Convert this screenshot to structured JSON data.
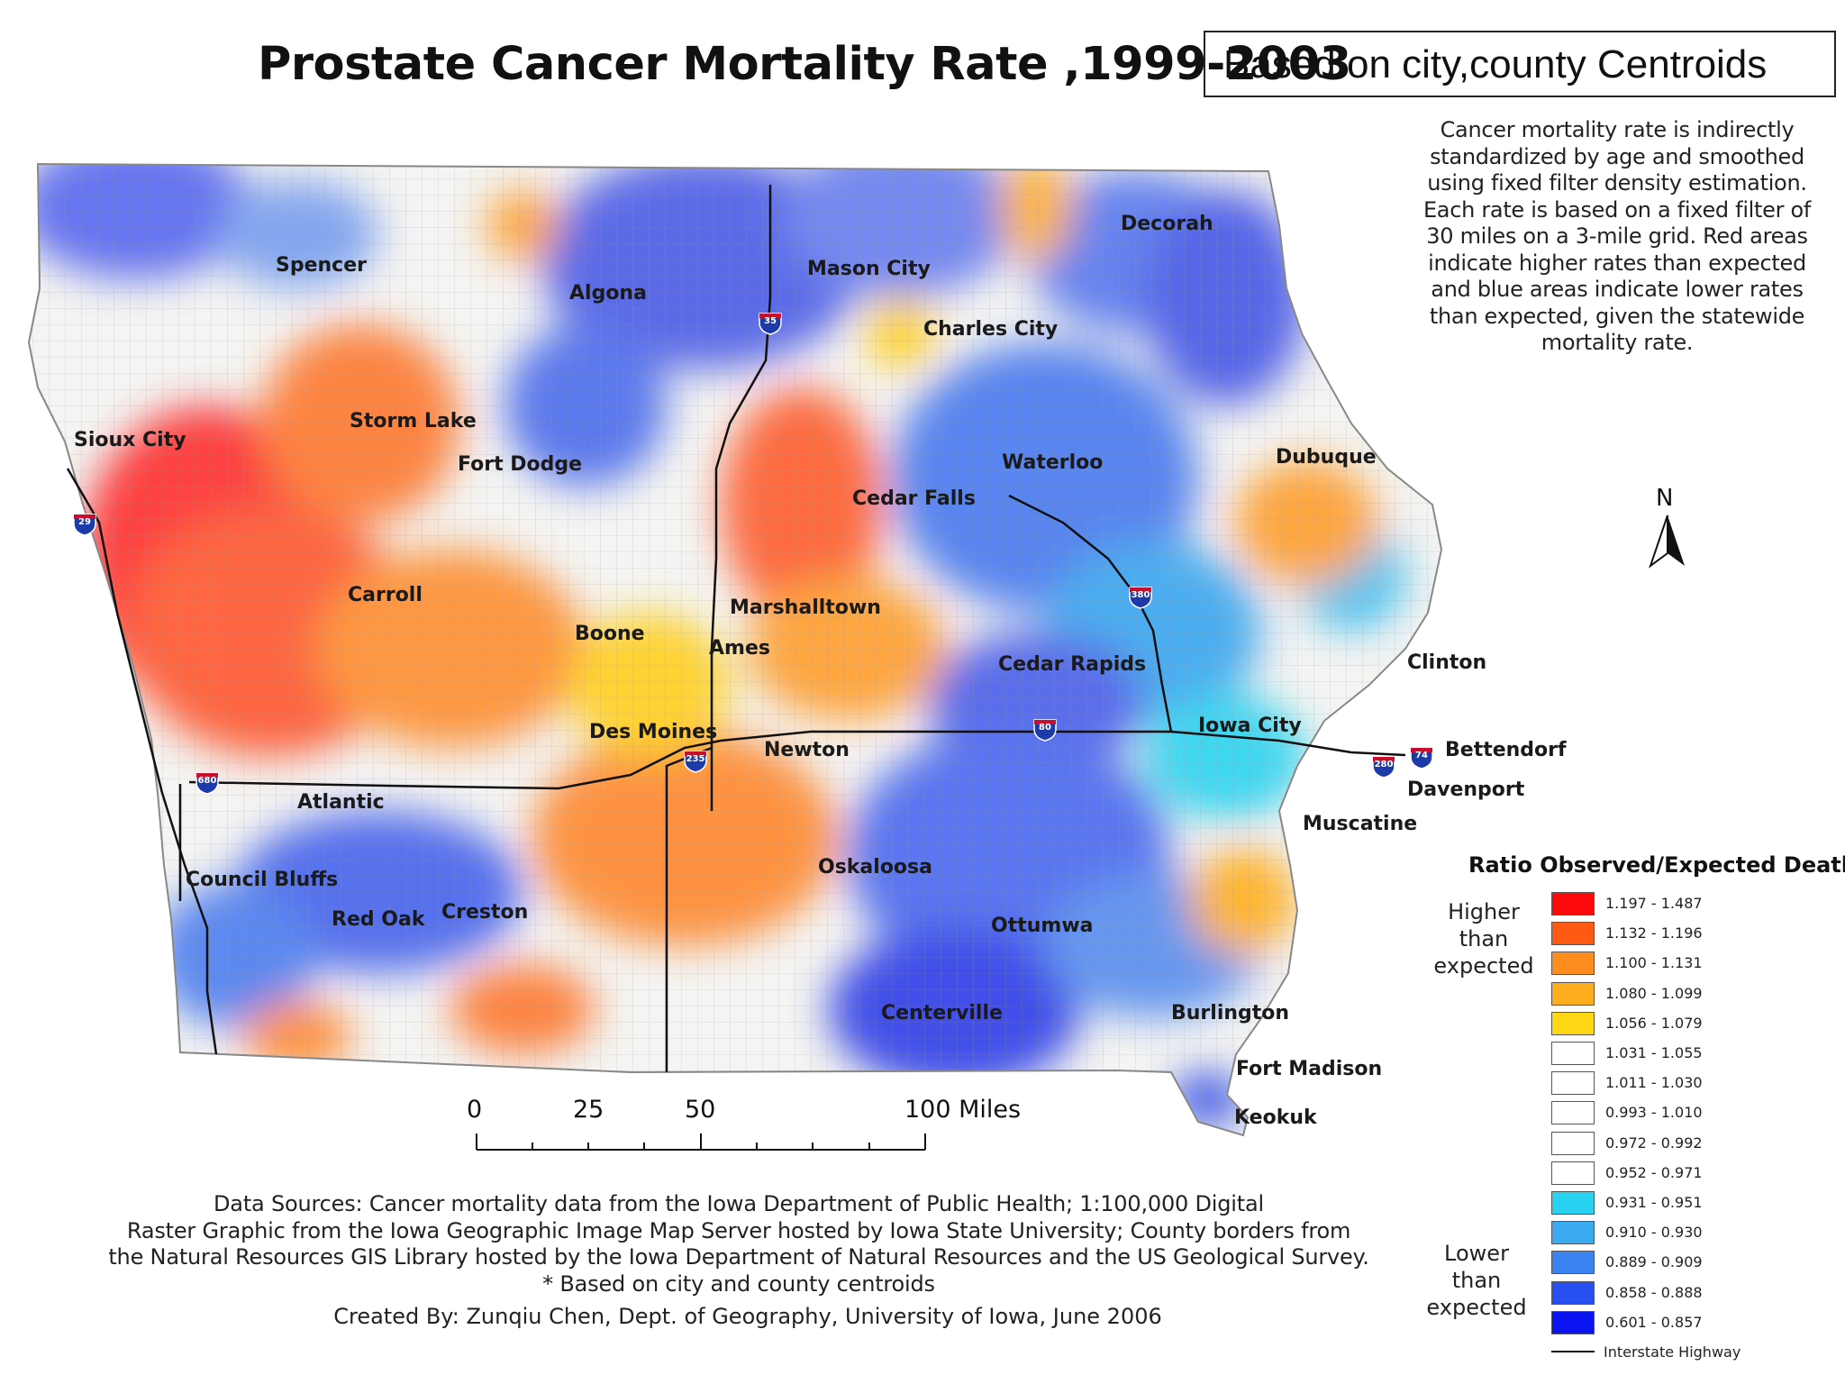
{
  "title": "Prostate Cancer Mortality Rate ,1999-2003",
  "subtitle_box": "Based on city,county Centroids",
  "note_lines": [
    "Cancer mortality rate is indirectly",
    "standardized by age and smoothed",
    "using fixed filter density estimation.",
    "Each rate is based on a fixed filter of",
    "30 miles on a 3-mile grid. Red areas",
    "indicate higher rates than expected",
    "and blue areas indicate lower rates",
    "than expected, given the statewide",
    "mortality rate."
  ],
  "north_arrow_label": "N",
  "cities": [
    {
      "name": "Spencer"
    },
    {
      "name": "Algona"
    },
    {
      "name": "Mason City"
    },
    {
      "name": "Decorah"
    },
    {
      "name": "Charles City"
    },
    {
      "name": "Sioux City"
    },
    {
      "name": "Storm Lake"
    },
    {
      "name": "Fort Dodge"
    },
    {
      "name": "Waterloo"
    },
    {
      "name": "Dubuque"
    },
    {
      "name": "Cedar Falls"
    },
    {
      "name": "Carroll"
    },
    {
      "name": "Marshalltown"
    },
    {
      "name": "Boone"
    },
    {
      "name": "Ames"
    },
    {
      "name": "Cedar Rapids"
    },
    {
      "name": "Clinton"
    },
    {
      "name": "Des Moines"
    },
    {
      "name": "Newton"
    },
    {
      "name": "Iowa City"
    },
    {
      "name": "Bettendorf"
    },
    {
      "name": "Davenport"
    },
    {
      "name": "Atlantic"
    },
    {
      "name": "Muscatine"
    },
    {
      "name": "Council Bluffs"
    },
    {
      "name": "Oskaloosa"
    },
    {
      "name": "Red Oak"
    },
    {
      "name": "Creston"
    },
    {
      "name": "Ottumwa"
    },
    {
      "name": "Centerville"
    },
    {
      "name": "Burlington"
    },
    {
      "name": "Fort Madison"
    },
    {
      "name": "Keokuk"
    }
  ],
  "interstates": [
    "35",
    "29",
    "380",
    "80",
    "680",
    "235",
    "280",
    "74"
  ],
  "scale_bar": {
    "labels": [
      "0",
      "25",
      "50",
      "100 Miles"
    ]
  },
  "sources_lines": [
    "Data Sources: Cancer mortality data from the Iowa Department of Public Health; 1:100,000 Digital",
    "Raster Graphic from the Iowa Geographic Image Map Server hosted by Iowa State University; County borders from",
    "the Natural Resources GIS Library hosted by the Iowa Department of Natural Resources and the US Geological Survey.",
    "* Based on city and county centroids"
  ],
  "created_by": "Created By: Zunqiu Chen, Dept. of Geography, University of Iowa, June 2006",
  "legend": {
    "title": "Ratio Observed/Expected Deaths",
    "higher_label": [
      "Higher",
      "than",
      "expected"
    ],
    "lower_label": [
      "Lower",
      "than",
      "expected"
    ],
    "classes": [
      {
        "range": "1.197 - 1.487",
        "color": "#ff0a0a"
      },
      {
        "range": "1.132 - 1.196",
        "color": "#ff5a14"
      },
      {
        "range": "1.100 - 1.131",
        "color": "#ff8c1e"
      },
      {
        "range": "1.080 - 1.099",
        "color": "#ffae1e"
      },
      {
        "range": "1.056 - 1.079",
        "color": "#ffd714"
      },
      {
        "range": "1.031 - 1.055",
        "color": "#ffffff"
      },
      {
        "range": "1.011 - 1.030",
        "color": "#ffffff"
      },
      {
        "range": "0.993 - 1.010",
        "color": "#ffffff"
      },
      {
        "range": "0.972 - 0.992",
        "color": "#ffffff"
      },
      {
        "range": "0.952 - 0.971",
        "color": "#ffffff"
      },
      {
        "range": "0.931 - 0.951",
        "color": "#28d2f0"
      },
      {
        "range": "0.910 - 0.930",
        "color": "#3caaf0"
      },
      {
        "range": "0.889 - 0.909",
        "color": "#3c82f0"
      },
      {
        "range": "0.858 - 0.888",
        "color": "#2850f0"
      },
      {
        "range": "0.601 - 0.857",
        "color": "#0a14f0"
      }
    ],
    "highway_label": "Interstate Highway"
  }
}
